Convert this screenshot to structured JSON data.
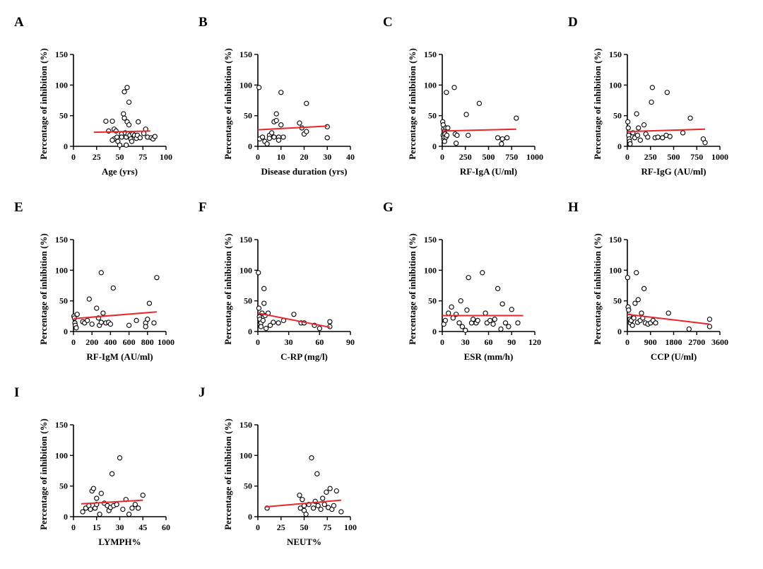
{
  "figure": {
    "y_axis_label": "Percentage of inhibition (%)",
    "line_color": "#e8262c",
    "marker_edge_color": "#000000",
    "marker_face_color": "#ffffff"
  },
  "chart_data": [
    {
      "panel": "A",
      "type": "scatter",
      "title": "",
      "xlabel": "Age  (yrs)",
      "ylabel": "Percentage of inhibition (%)",
      "xlim": [
        0,
        100
      ],
      "xticks": [
        0,
        25,
        50,
        75,
        100
      ],
      "ylim": [
        0,
        150
      ],
      "yticks": [
        0,
        50,
        100,
        150
      ],
      "points": [
        [
          35,
          41
        ],
        [
          42,
          41
        ],
        [
          38,
          25
        ],
        [
          44,
          28
        ],
        [
          46,
          25
        ],
        [
          44,
          12
        ],
        [
          42,
          10
        ],
        [
          48,
          8
        ],
        [
          50,
          2
        ],
        [
          52,
          20
        ],
        [
          54,
          53
        ],
        [
          55,
          46
        ],
        [
          55,
          89
        ],
        [
          58,
          96
        ],
        [
          60,
          72
        ],
        [
          58,
          40
        ],
        [
          60,
          35
        ],
        [
          56,
          22
        ],
        [
          57,
          15
        ],
        [
          59,
          20
        ],
        [
          61,
          18
        ],
        [
          62,
          12
        ],
        [
          63,
          8
        ],
        [
          64,
          20
        ],
        [
          66,
          18
        ],
        [
          68,
          13
        ],
        [
          69,
          18
        ],
        [
          70,
          40
        ],
        [
          72,
          14
        ],
        [
          76,
          21
        ],
        [
          78,
          28
        ],
        [
          80,
          15
        ],
        [
          84,
          14
        ],
        [
          86,
          12
        ],
        [
          88,
          16
        ],
        [
          47,
          15
        ],
        [
          52,
          15
        ],
        [
          57,
          2
        ]
      ],
      "trend": [
        [
          22,
          23
        ],
        [
          83,
          25
        ]
      ]
    },
    {
      "panel": "B",
      "type": "scatter",
      "title": "",
      "xlabel": "Disease duration (yrs)",
      "ylabel": "Percentage of inhibition (%)",
      "xlim": [
        0,
        40
      ],
      "xticks": [
        0,
        10,
        20,
        30,
        40
      ],
      "ylim": [
        0,
        150
      ],
      "yticks": [
        0,
        50,
        100,
        150
      ],
      "points": [
        [
          0.5,
          96
        ],
        [
          0.8,
          12
        ],
        [
          2,
          15
        ],
        [
          3,
          8
        ],
        [
          4,
          4
        ],
        [
          5,
          18
        ],
        [
          5,
          13
        ],
        [
          6,
          22
        ],
        [
          7,
          40
        ],
        [
          7,
          15
        ],
        [
          8,
          53
        ],
        [
          8,
          42
        ],
        [
          9,
          15
        ],
        [
          9,
          10
        ],
        [
          10,
          88
        ],
        [
          10,
          35
        ],
        [
          11,
          15
        ],
        [
          18,
          38
        ],
        [
          19,
          30
        ],
        [
          20,
          20
        ],
        [
          21,
          70
        ],
        [
          21,
          24
        ],
        [
          30,
          32
        ],
        [
          30,
          14
        ]
      ],
      "trend": [
        [
          0,
          27
        ],
        [
          30,
          33
        ]
      ]
    },
    {
      "panel": "C",
      "type": "scatter",
      "title": "",
      "xlabel": "RF-IgA (U/ml)",
      "ylabel": "Percentage of inhibition (%)",
      "xlim": [
        0,
        1000
      ],
      "xticks": [
        0,
        250,
        500,
        750,
        1000
      ],
      "ylim": [
        0,
        150
      ],
      "yticks": [
        0,
        50,
        100,
        150
      ],
      "points": [
        [
          5,
          40
        ],
        [
          10,
          35
        ],
        [
          10,
          18
        ],
        [
          15,
          28
        ],
        [
          15,
          12
        ],
        [
          20,
          22
        ],
        [
          20,
          15
        ],
        [
          25,
          8
        ],
        [
          25,
          25
        ],
        [
          30,
          20
        ],
        [
          40,
          30
        ],
        [
          40,
          15
        ],
        [
          45,
          88
        ],
        [
          50,
          18
        ],
        [
          60,
          30
        ],
        [
          130,
          96
        ],
        [
          140,
          20
        ],
        [
          150,
          5
        ],
        [
          160,
          18
        ],
        [
          260,
          52
        ],
        [
          280,
          18
        ],
        [
          400,
          70
        ],
        [
          600,
          14
        ],
        [
          640,
          4
        ],
        [
          650,
          12
        ],
        [
          700,
          14
        ],
        [
          800,
          46
        ]
      ],
      "trend": [
        [
          0,
          25
        ],
        [
          800,
          28
        ]
      ]
    },
    {
      "panel": "D",
      "type": "scatter",
      "title": "",
      "xlabel": "RF-IgG (AU/ml)",
      "ylabel": "Percentage of inhibition (%)",
      "xlim": [
        0,
        1000
      ],
      "xticks": [
        0,
        250,
        500,
        750,
        1000
      ],
      "ylim": [
        0,
        150
      ],
      "yticks": [
        0,
        50,
        100,
        150
      ],
      "points": [
        [
          5,
          40
        ],
        [
          10,
          30
        ],
        [
          15,
          18
        ],
        [
          20,
          12
        ],
        [
          25,
          8
        ],
        [
          30,
          4
        ],
        [
          60,
          22
        ],
        [
          80,
          14
        ],
        [
          100,
          53
        ],
        [
          110,
          18
        ],
        [
          120,
          30
        ],
        [
          140,
          10
        ],
        [
          180,
          35
        ],
        [
          200,
          20
        ],
        [
          220,
          15
        ],
        [
          260,
          72
        ],
        [
          270,
          96
        ],
        [
          300,
          14
        ],
        [
          330,
          15
        ],
        [
          380,
          14
        ],
        [
          420,
          18
        ],
        [
          430,
          88
        ],
        [
          460,
          16
        ],
        [
          600,
          22
        ],
        [
          680,
          46
        ],
        [
          820,
          12
        ],
        [
          840,
          6
        ]
      ],
      "trend": [
        [
          0,
          24
        ],
        [
          840,
          28
        ]
      ]
    },
    {
      "panel": "E",
      "type": "scatter",
      "title": "",
      "xlabel": "RF-IgM (AU/ml)",
      "ylabel": "Percentage of inhibition (%)",
      "xlim": [
        0,
        1000
      ],
      "xticks": [
        0,
        200,
        400,
        600,
        800,
        1000
      ],
      "ylim": [
        0,
        150
      ],
      "yticks": [
        0,
        50,
        100,
        150
      ],
      "points": [
        [
          5,
          25
        ],
        [
          10,
          22
        ],
        [
          15,
          14
        ],
        [
          20,
          10
        ],
        [
          30,
          6
        ],
        [
          40,
          28
        ],
        [
          100,
          16
        ],
        [
          120,
          14
        ],
        [
          150,
          18
        ],
        [
          170,
          53
        ],
        [
          200,
          12
        ],
        [
          250,
          38
        ],
        [
          270,
          22
        ],
        [
          280,
          10
        ],
        [
          300,
          15
        ],
        [
          320,
          30
        ],
        [
          350,
          14
        ],
        [
          380,
          15
        ],
        [
          400,
          12
        ],
        [
          430,
          71
        ],
        [
          300,
          96
        ],
        [
          600,
          10
        ],
        [
          680,
          18
        ],
        [
          780,
          14
        ],
        [
          800,
          20
        ],
        [
          820,
          46
        ],
        [
          870,
          14
        ],
        [
          900,
          88
        ],
        [
          780,
          8
        ]
      ],
      "trend": [
        [
          0,
          21
        ],
        [
          900,
          32
        ]
      ]
    },
    {
      "panel": "F",
      "type": "scatter",
      "title": "",
      "xlabel": "C-RP (mg/l)",
      "ylabel": "Percentage of inhibition (%)",
      "xlim": [
        0,
        90
      ],
      "xticks": [
        0,
        30,
        60,
        90
      ],
      "ylim": [
        0,
        150
      ],
      "yticks": [
        0,
        50,
        100,
        150
      ],
      "points": [
        [
          0.5,
          96
        ],
        [
          1,
          38
        ],
        [
          1.5,
          24
        ],
        [
          2,
          20
        ],
        [
          2,
          12
        ],
        [
          3,
          14
        ],
        [
          3,
          8
        ],
        [
          4,
          30
        ],
        [
          5,
          18
        ],
        [
          6,
          70
        ],
        [
          6,
          46
        ],
        [
          7,
          26
        ],
        [
          8,
          5
        ],
        [
          10,
          30
        ],
        [
          12,
          10
        ],
        [
          15,
          15
        ],
        [
          20,
          14
        ],
        [
          25,
          18
        ],
        [
          35,
          28
        ],
        [
          42,
          14
        ],
        [
          45,
          14
        ],
        [
          55,
          10
        ],
        [
          60,
          5
        ],
        [
          70,
          16
        ],
        [
          70,
          8
        ]
      ],
      "trend": [
        [
          0,
          30
        ],
        [
          70,
          7
        ]
      ]
    },
    {
      "panel": "G",
      "type": "scatter",
      "title": "",
      "xlabel": "ESR (mm/h)",
      "ylabel": "Percentage of inhibition (%)",
      "xlim": [
        0,
        120
      ],
      "xticks": [
        0,
        30,
        60,
        90,
        120
      ],
      "ylim": [
        0,
        150
      ],
      "yticks": [
        0,
        50,
        100,
        150
      ],
      "points": [
        [
          2,
          12
        ],
        [
          4,
          18
        ],
        [
          8,
          30
        ],
        [
          12,
          40
        ],
        [
          14,
          22
        ],
        [
          18,
          28
        ],
        [
          22,
          14
        ],
        [
          24,
          50
        ],
        [
          26,
          8
        ],
        [
          30,
          2
        ],
        [
          32,
          35
        ],
        [
          34,
          88
        ],
        [
          38,
          14
        ],
        [
          40,
          20
        ],
        [
          44,
          14
        ],
        [
          46,
          18
        ],
        [
          52,
          96
        ],
        [
          56,
          30
        ],
        [
          58,
          14
        ],
        [
          62,
          18
        ],
        [
          66,
          12
        ],
        [
          68,
          20
        ],
        [
          72,
          70
        ],
        [
          76,
          4
        ],
        [
          78,
          45
        ],
        [
          82,
          14
        ],
        [
          86,
          8
        ],
        [
          90,
          36
        ],
        [
          98,
          14
        ]
      ],
      "trend": [
        [
          0,
          26
        ],
        [
          105,
          26
        ]
      ]
    },
    {
      "panel": "H",
      "type": "scatter",
      "title": "",
      "xlabel": "CCP (U/ml)",
      "ylabel": "Percentage of inhibition (%)",
      "xlim": [
        0,
        3600
      ],
      "xticks": [
        0,
        900,
        1800,
        2700,
        3600
      ],
      "ylim": [
        0,
        150
      ],
      "yticks": [
        0,
        50,
        100,
        150
      ],
      "points": [
        [
          10,
          88
        ],
        [
          30,
          40
        ],
        [
          50,
          35
        ],
        [
          80,
          25
        ],
        [
          100,
          20
        ],
        [
          120,
          14
        ],
        [
          150,
          18
        ],
        [
          200,
          10
        ],
        [
          250,
          22
        ],
        [
          300,
          46
        ],
        [
          350,
          96
        ],
        [
          400,
          15
        ],
        [
          420,
          52
        ],
        [
          500,
          18
        ],
        [
          550,
          30
        ],
        [
          600,
          22
        ],
        [
          650,
          70
        ],
        [
          700,
          14
        ],
        [
          800,
          12
        ],
        [
          900,
          14
        ],
        [
          1000,
          18
        ],
        [
          1100,
          14
        ],
        [
          1600,
          30
        ],
        [
          2400,
          4
        ],
        [
          3200,
          20
        ],
        [
          3200,
          8
        ]
      ],
      "trend": [
        [
          0,
          28
        ],
        [
          3200,
          12
        ]
      ]
    },
    {
      "panel": "I",
      "type": "scatter",
      "title": "",
      "xlabel": "LYMPH%",
      "ylabel": "Percentage of inhibition (%)",
      "xlim": [
        0,
        60
      ],
      "xticks": [
        0,
        15,
        30,
        45,
        60
      ],
      "ylim": [
        0,
        150
      ],
      "yticks": [
        0,
        50,
        100,
        150
      ],
      "points": [
        [
          6,
          8
        ],
        [
          8,
          14
        ],
        [
          10,
          18
        ],
        [
          11,
          12
        ],
        [
          12,
          42
        ],
        [
          13,
          46
        ],
        [
          14,
          14
        ],
        [
          15,
          30
        ],
        [
          15,
          20
        ],
        [
          17,
          4
        ],
        [
          18,
          38
        ],
        [
          20,
          22
        ],
        [
          22,
          18
        ],
        [
          23,
          10
        ],
        [
          24,
          15
        ],
        [
          25,
          70
        ],
        [
          26,
          18
        ],
        [
          28,
          20
        ],
        [
          30,
          96
        ],
        [
          32,
          12
        ],
        [
          34,
          28
        ],
        [
          36,
          4
        ],
        [
          38,
          14
        ],
        [
          40,
          20
        ],
        [
          42,
          14
        ],
        [
          45,
          35
        ]
      ],
      "trend": [
        [
          5,
          21
        ],
        [
          45,
          27
        ]
      ]
    },
    {
      "panel": "J",
      "type": "scatter",
      "title": "",
      "xlabel": "NEUT%",
      "ylabel": "Percentage of inhibition (%)",
      "xlim": [
        0,
        100
      ],
      "xticks": [
        0,
        25,
        50,
        75,
        100
      ],
      "ylim": [
        0,
        150
      ],
      "yticks": [
        0,
        50,
        100,
        150
      ],
      "points": [
        [
          10,
          14
        ],
        [
          45,
          35
        ],
        [
          46,
          14
        ],
        [
          48,
          28
        ],
        [
          50,
          18
        ],
        [
          50,
          10
        ],
        [
          52,
          4
        ],
        [
          55,
          20
        ],
        [
          58,
          96
        ],
        [
          60,
          14
        ],
        [
          62,
          25
        ],
        [
          64,
          70
        ],
        [
          65,
          18
        ],
        [
          68,
          12
        ],
        [
          70,
          30
        ],
        [
          72,
          20
        ],
        [
          74,
          40
        ],
        [
          76,
          15
        ],
        [
          78,
          46
        ],
        [
          80,
          12
        ],
        [
          82,
          18
        ],
        [
          85,
          42
        ],
        [
          90,
          8
        ]
      ],
      "trend": [
        [
          8,
          16
        ],
        [
          90,
          27
        ]
      ]
    }
  ]
}
